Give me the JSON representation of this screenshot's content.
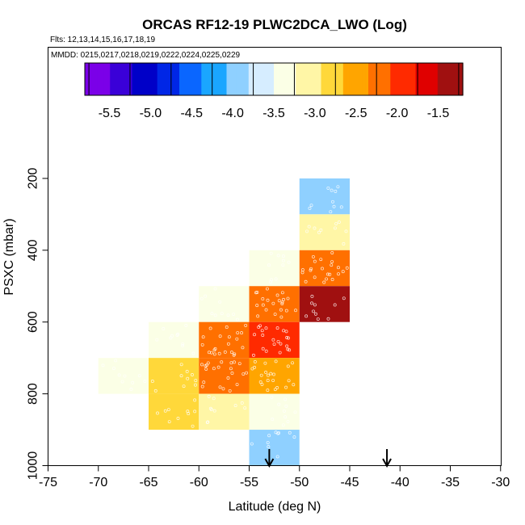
{
  "chart_data": {
    "type": "heatmap",
    "title": "ORCAS RF12-19 PLWC2DCA_LWO (Log)",
    "flights_label": "Flts: 12,13,14,15,16,17,18,19",
    "dates_label": "MMDD: 0215,0217,0218,0219,0222,0224,0225,0229",
    "xlabel": "Latitude (deg N)",
    "ylabel": "PSXC (mbar)",
    "xlim": [
      -75,
      -30
    ],
    "ylim": [
      1000,
      100
    ],
    "x_ticks": [
      -75,
      -70,
      -65,
      -60,
      -55,
      -50,
      -45,
      -40,
      -35,
      -30
    ],
    "y_ticks": [
      200,
      400,
      600,
      800,
      1000
    ],
    "colorbar": {
      "range": [
        -5.8,
        -1.2
      ],
      "tick_values": [
        -5.5,
        -5.0,
        -4.5,
        -4.0,
        -3.5,
        -3.0,
        -2.5,
        -2.0,
        -1.5
      ],
      "tick_labels": [
        "-5.5",
        "-5.0",
        "-4.5",
        "-4.0",
        "-3.5",
        "-3.0",
        "-2.5",
        "-2.0",
        "-1.5"
      ],
      "colors": [
        "#7b00e8",
        "#3a00d8",
        "#0000c8",
        "#0026e6",
        "#0a66ff",
        "#1aa6ff",
        "#8fd0ff",
        "#d6edff",
        "#fbffe6",
        "#fff6a6",
        "#ffd83a",
        "#ffa500",
        "#ff7000",
        "#ff2a00",
        "#e00000",
        "#a01010"
      ]
    },
    "cells": [
      {
        "lat": -47.5,
        "p": 250,
        "value": -4.0
      },
      {
        "lat": -47.5,
        "p": 350,
        "value": -3.1
      },
      {
        "lat": -52.5,
        "p": 450,
        "value": -3.4
      },
      {
        "lat": -47.5,
        "p": 450,
        "value": -2.3
      },
      {
        "lat": -57.5,
        "p": 550,
        "value": -3.4
      },
      {
        "lat": -52.5,
        "p": 550,
        "value": -2.3
      },
      {
        "lat": -47.5,
        "p": 550,
        "value": -1.35
      },
      {
        "lat": -62.5,
        "p": 650,
        "value": -3.4
      },
      {
        "lat": -57.5,
        "p": 650,
        "value": -2.3
      },
      {
        "lat": -52.5,
        "p": 650,
        "value": -1.9
      },
      {
        "lat": -67.5,
        "p": 750,
        "value": -3.5
      },
      {
        "lat": -62.5,
        "p": 750,
        "value": -2.7
      },
      {
        "lat": -57.5,
        "p": 750,
        "value": -2.3
      },
      {
        "lat": -52.5,
        "p": 750,
        "value": -2.4
      },
      {
        "lat": -62.5,
        "p": 850,
        "value": -2.7
      },
      {
        "lat": -57.5,
        "p": 850,
        "value": -3.05
      },
      {
        "lat": -52.5,
        "p": 850,
        "value": -3.4
      },
      {
        "lat": -52.5,
        "p": 950,
        "value": -4.0
      }
    ],
    "arrows": [
      {
        "lat": -53.0
      },
      {
        "lat": -41.3
      }
    ]
  }
}
